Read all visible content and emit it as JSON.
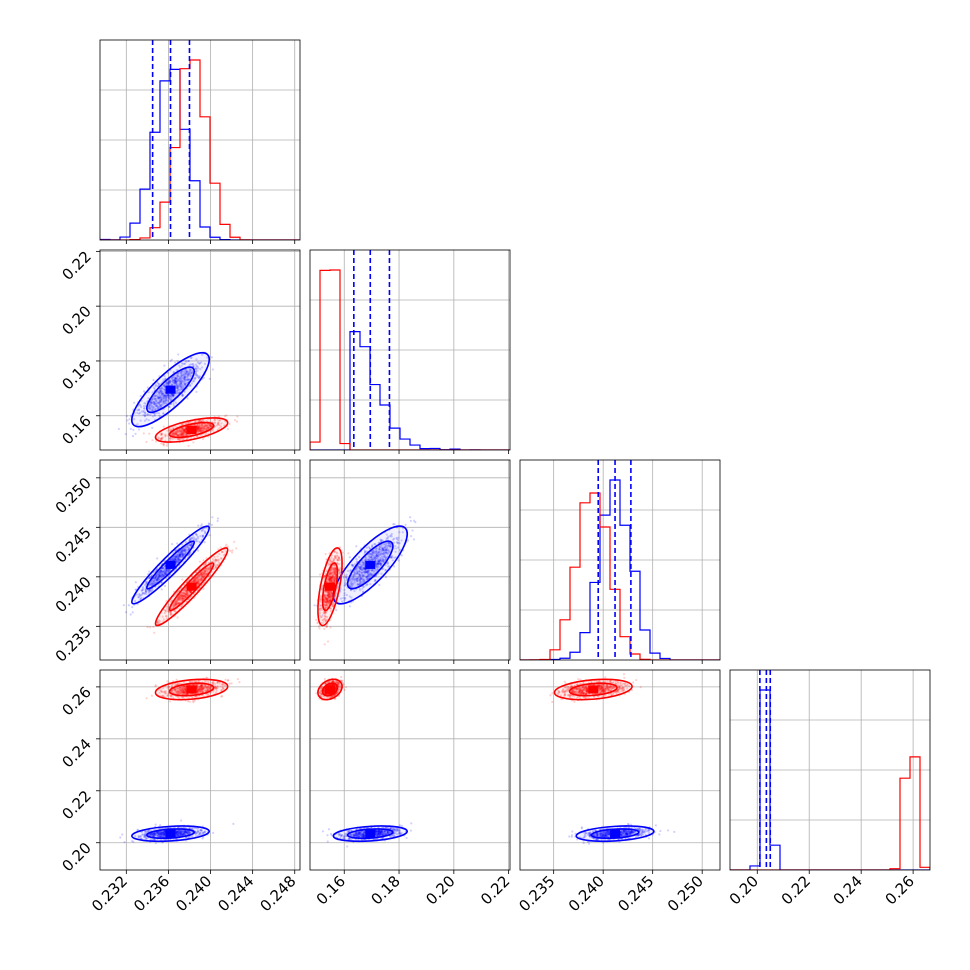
{
  "chart_data": {
    "type": "corner",
    "grid": true,
    "colors": {
      "blue": "#0000ff",
      "red": "#ff0000"
    },
    "parameters": [
      {
        "range": [
          0.2295,
          0.2485
        ],
        "ticks": [
          0.232,
          0.236,
          0.24,
          0.244,
          0.248
        ],
        "tick_labels": [
          "0.232",
          "0.236",
          "0.240",
          "0.244",
          "0.248"
        ]
      },
      {
        "range": [
          0.1475,
          0.2205
        ],
        "ticks": [
          0.16,
          0.18,
          0.2,
          0.22
        ],
        "tick_labels": [
          "0.16",
          "0.18",
          "0.20",
          "0.22"
        ]
      },
      {
        "range": [
          0.2316,
          0.2518
        ],
        "ticks": [
          0.235,
          0.24,
          0.245,
          0.25
        ],
        "tick_labels": [
          "0.235",
          "0.240",
          "0.245",
          "0.250"
        ]
      },
      {
        "range": [
          0.1895,
          0.2665
        ],
        "ticks": [
          0.2,
          0.22,
          0.24,
          0.26
        ],
        "tick_labels": [
          "0.20",
          "0.22",
          "0.24",
          "0.26"
        ]
      }
    ],
    "series": [
      {
        "color": "#0000ff",
        "means": [
          0.2362,
          0.1695,
          0.2412,
          0.2035
        ],
        "sigmas": [
          0.0015,
          0.0055,
          0.0016,
          0.0012
        ],
        "corr": [
          [
            1,
            0.82,
            0.95,
            0.3
          ],
          [
            0.82,
            1,
            0.8,
            0.3
          ],
          [
            0.95,
            0.8,
            1,
            0.3
          ],
          [
            0.3,
            0.3,
            0.3,
            1
          ]
        ],
        "quantiles": [
          [
            0.2345,
            0.2362,
            0.238
          ],
          [
            0.1635,
            0.1695,
            0.1765
          ],
          [
            0.2395,
            0.2412,
            0.2428
          ],
          [
            0.201,
            0.2035,
            0.205
          ]
        ]
      },
      {
        "color": "#ff0000",
        "means": [
          0.2382,
          0.1548,
          0.239,
          0.259
        ],
        "sigmas": [
          0.0014,
          0.0018,
          0.0016,
          0.0016
        ],
        "corr": [
          [
            1,
            0.6,
            0.95,
            0.3
          ],
          [
            0.6,
            1,
            0.6,
            0.3
          ],
          [
            0.95,
            0.6,
            1,
            0.3
          ],
          [
            0.3,
            0.3,
            0.3,
            1
          ]
        ],
        "quantiles": null
      }
    ]
  }
}
